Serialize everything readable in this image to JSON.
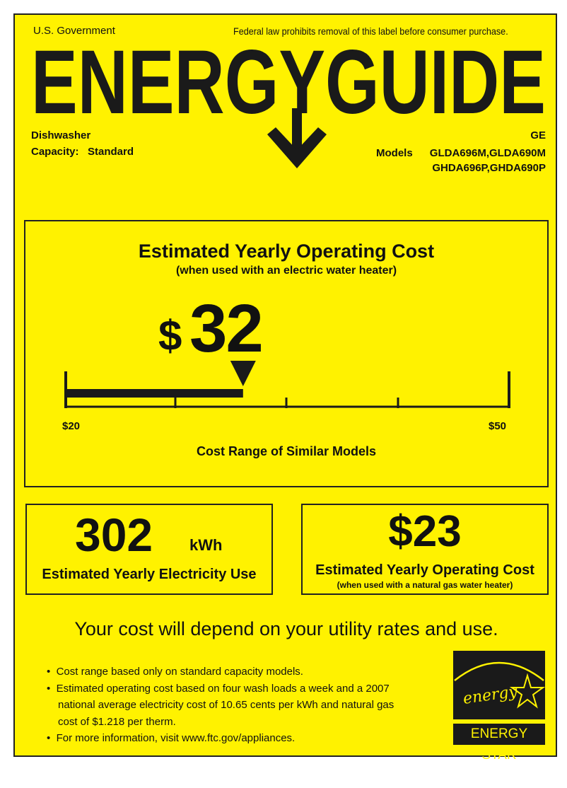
{
  "header": {
    "government": "U.S. Government",
    "notice": "Federal law prohibits removal of this label before consumer purchase.",
    "title": "ENERGYGUIDE"
  },
  "product": {
    "type": "Dishwasher",
    "capacity_label": "Capacity:",
    "capacity": "Standard",
    "brand": "GE",
    "models_label": "Models",
    "models_line1": "GLDA696M,GLDA690M",
    "models_line2": "GHDA696P,GHDA690P"
  },
  "main_cost": {
    "title": "Estimated Yearly Operating Cost",
    "subtitle": "(when used with an electric water heater)",
    "currency": "$",
    "value": "32",
    "range_min": "$20",
    "range_max": "$50",
    "range_min_value": 20,
    "range_max_value": 50,
    "marker_value": 32,
    "range_caption": "Cost Range of Similar Models"
  },
  "electricity": {
    "value": "302",
    "unit": "kWh",
    "caption": "Estimated Yearly Electricity Use"
  },
  "gas_cost": {
    "value": "$23",
    "caption": "Estimated Yearly Operating Cost",
    "subcaption": "(when used with a natural gas water heater)"
  },
  "disclaimer": "Your cost will depend on your utility rates and use.",
  "notes": [
    "Cost range based only on standard capacity models.",
    "Estimated operating cost based on four wash loads a week and a 2007",
    "national average electricity cost of 10.65 cents per kWh and natural gas",
    "cost of $1.218 per therm.",
    "For more information, visit www.ftc.gov/appliances."
  ],
  "energy_star": {
    "script": "energy",
    "label": "ENERGY STAR"
  },
  "colors": {
    "background": "#fff200",
    "ink": "#1a1a1a"
  }
}
